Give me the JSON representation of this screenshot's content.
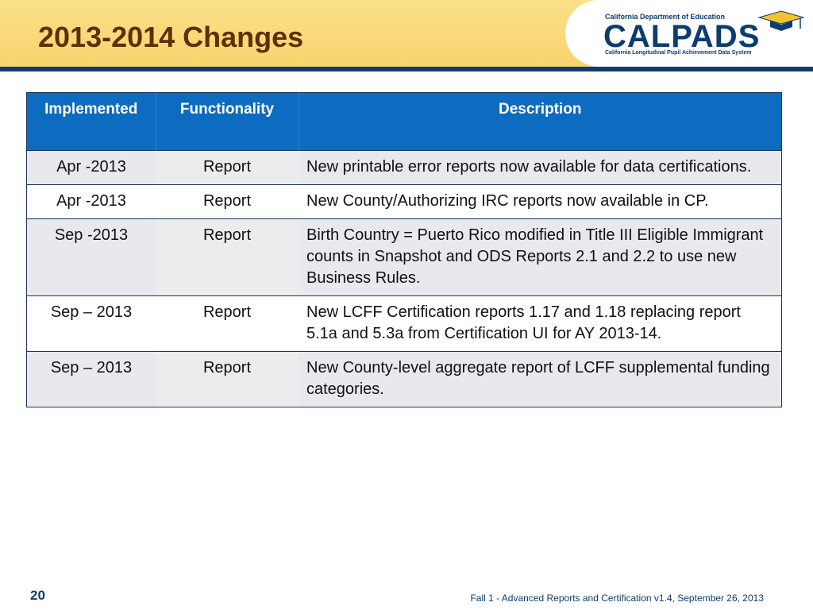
{
  "header": {
    "title": "2013-2014 Changes",
    "logo": {
      "org": "California Department of Education",
      "word": "CALPADS",
      "tagline": "California Longitudinal Pupil Achievement Data System"
    }
  },
  "table": {
    "headers": [
      "Implemented",
      "Functionality",
      "Description"
    ],
    "rows": [
      {
        "implemented": "Apr -2013",
        "functionality": "Report",
        "description": "New printable error reports now available for data certifications."
      },
      {
        "implemented": "Apr -2013",
        "functionality": "Report",
        "description": "New County/Authorizing IRC reports now available in CP."
      },
      {
        "implemented": "Sep -2013",
        "functionality": "Report",
        "description": "Birth Country = Puerto Rico modified in Title III Eligible Immigrant counts in Snapshot and ODS Reports 2.1 and 2.2 to use new Business Rules."
      },
      {
        "implemented": "Sep – 2013",
        "functionality": "Report",
        "description": "New LCFF Certification reports 1.17 and 1.18 replacing report 5.1a and 5.3a from Certification UI for AY 2013-14."
      },
      {
        "implemented": "Sep – 2013",
        "functionality": "Report",
        "description": "New County-level aggregate report of LCFF supplemental funding categories."
      }
    ]
  },
  "footer": {
    "slide_number": "20",
    "text": "Fall 1 - Advanced Reports and Certification v1.4, September 26, 2013"
  },
  "colors": {
    "header_band": "#f7d36c",
    "title": "#5e3000",
    "table_header": "#0d6bc0",
    "navy": "#0d3c6e"
  }
}
